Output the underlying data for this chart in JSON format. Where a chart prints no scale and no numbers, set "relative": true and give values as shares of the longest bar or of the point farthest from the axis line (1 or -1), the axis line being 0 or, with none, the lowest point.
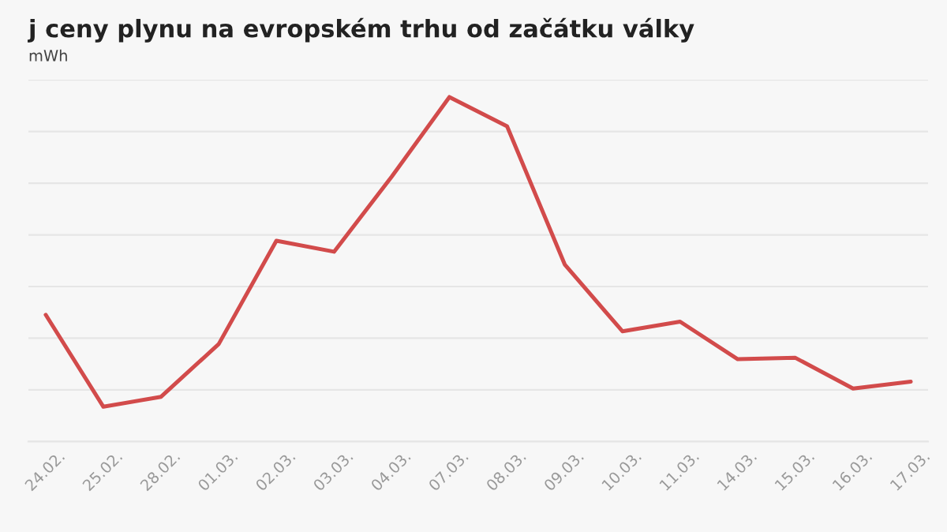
{
  "chart_data": {
    "type": "line",
    "title": "j ceny plynu na evropském trhu od začátku války",
    "subtitle": "mWh",
    "relative": true,
    "grid": "y",
    "categories": [
      "24.02.",
      "25.02.",
      "28.02.",
      "01.03.",
      "02.03.",
      "03.03.",
      "04.03.",
      "07.03.",
      "08.03.",
      "09.03.",
      "10.03.",
      "11.03.",
      "14.03.",
      "15.03.",
      "16.03.",
      "17.03."
    ],
    "series": [
      {
        "color": "#d24b4b",
        "values": [
          0.368,
          0.101,
          0.13,
          0.283,
          0.583,
          0.551,
          0.769,
          1,
          0.915,
          0.514,
          0.32,
          0.348,
          0.239,
          0.243,
          0.154,
          0.174
        ]
      }
    ]
  }
}
